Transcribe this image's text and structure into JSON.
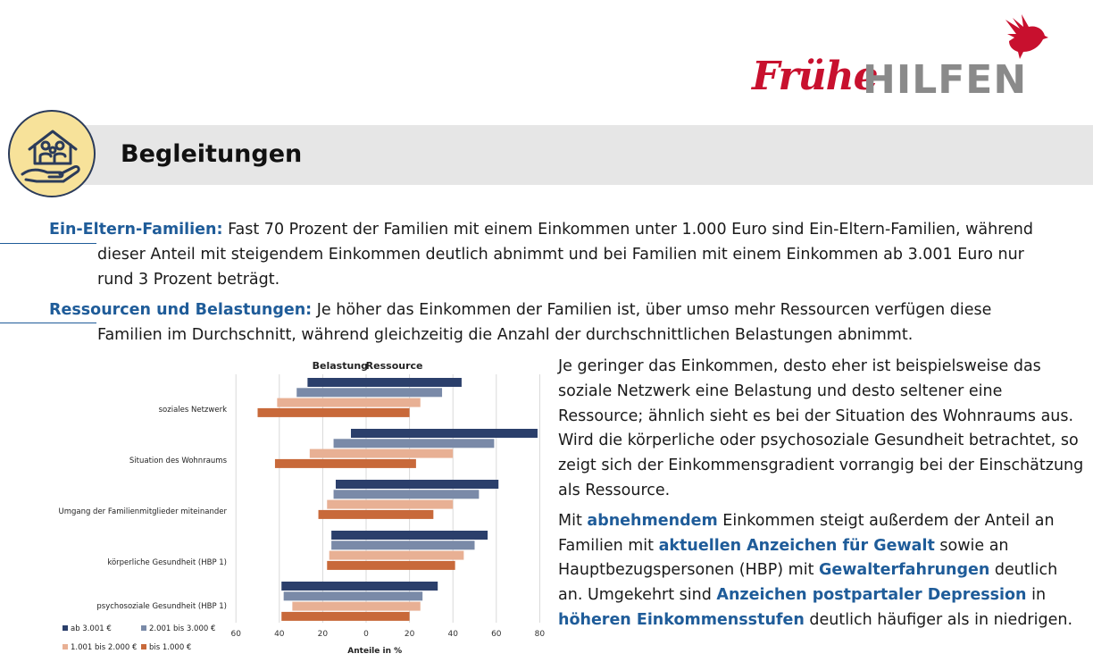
{
  "logo": {
    "frue": "Frühe",
    "hilfen": "HILFEN",
    "icon": "bird-icon"
  },
  "header": {
    "title": "Begleitungen",
    "icon": "family-house-hand-icon"
  },
  "para1": {
    "keyword": "Ein-Eltern-Familien:",
    "text": " Fast 70 Prozent der Familien mit einem Einkommen unter 1.000 Euro sind Ein-Eltern-Familien, während",
    "line2": "dieser Anteil mit steigendem Einkommen deutlich abnimmt und bei Familien mit einem Einkommen ab 3.001 Euro nur",
    "line3": "rund 3 Prozent beträgt."
  },
  "para2": {
    "keyword": "Ressourcen und Belastungen:",
    "text": " Je höher das Einkommen der Familien ist, über umso mehr Ressourcen verfügen diese",
    "line2": "Familien im Durchschnitt, während gleichzeitig die Anzahl der durchschnittlichen Belastungen abnimmt."
  },
  "right": {
    "p1": "Je geringer das Einkommen, desto eher ist beispielsweise das soziale Netzwerk eine Belastung und desto seltener eine Ressource; ähnlich sieht es bei der Situation des Wohnraums aus. Wird die körperliche oder psychosoziale Gesundheit betrachtet, so zeigt sich der Einkommensgradient vorrangig bei der Einschätzung als Ressource.",
    "p2a": "Mit ",
    "p2k1": "abnehmendem",
    "p2b": " Einkommen steigt außerdem der Anteil an Familien mit ",
    "p2k2": "aktuellen Anzeichen für Gewalt",
    "p2c": " sowie an Hauptbezugspersonen (HBP) mit ",
    "p2k3": "Gewalterfahrungen",
    "p2d": " deutlich an. Umgekehrt sind ",
    "p2k4": "Anzeichen postpartaler Depression",
    "p2e": " in ",
    "p2k5": "höheren Einkommensstufen",
    "p2f": " deutlich häufiger als in niedrigen."
  },
  "chart_data": {
    "type": "bar",
    "orientation": "horizontal-diverging",
    "header_left": "Belastung",
    "header_right": "Ressource",
    "xlabel": "Anteile in %",
    "xticks": [
      "60",
      "40",
      "20",
      "0",
      "20",
      "40",
      "60",
      "80"
    ],
    "xlim": [
      -60,
      80
    ],
    "categories": [
      "soziales Netzwerk",
      "Situation des Wohnraums",
      "Umgang der Familienmitglieder miteinander",
      "körperliche Gesundheit (HBP 1)",
      "psychosoziale Gesundheit (HBP 1)"
    ],
    "series": [
      {
        "name": "ab 3.001 €",
        "color": "#2b3f6b",
        "belastung": [
          27,
          7,
          14,
          16,
          39
        ],
        "ressource": [
          44,
          79,
          61,
          56,
          33
        ]
      },
      {
        "name": "2.001 bis 3.000 €",
        "color": "#7a8aa8",
        "belastung": [
          32,
          15,
          15,
          16,
          38
        ],
        "ressource": [
          35,
          59,
          52,
          50,
          26
        ]
      },
      {
        "name": "1.001 bis 2.000 €",
        "color": "#e8b094",
        "belastung": [
          41,
          26,
          18,
          17,
          34
        ],
        "ressource": [
          25,
          40,
          40,
          45,
          25
        ]
      },
      {
        "name": "bis 1.000 €",
        "color": "#c8693a",
        "belastung": [
          50,
          42,
          22,
          18,
          39
        ],
        "ressource": [
          20,
          23,
          31,
          41,
          20
        ]
      }
    ]
  }
}
